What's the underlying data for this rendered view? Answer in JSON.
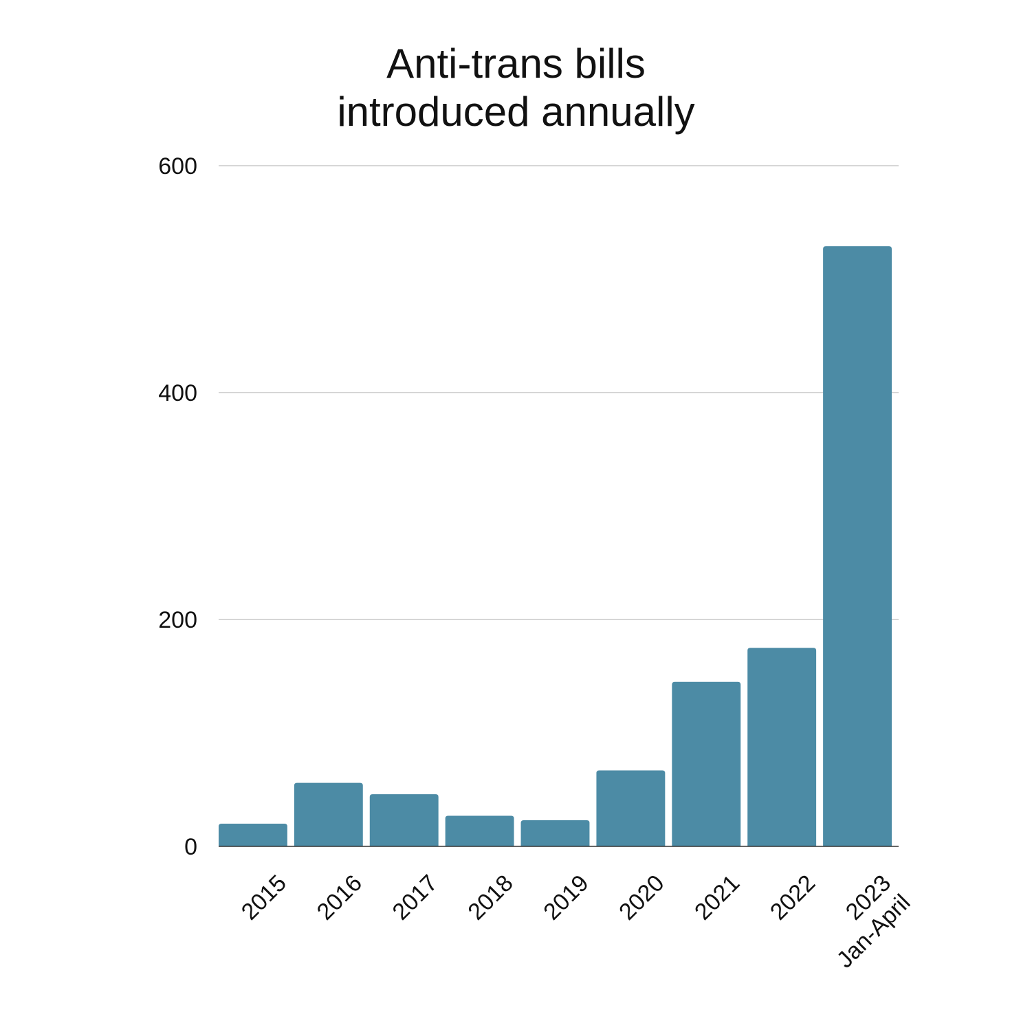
{
  "chart_data": {
    "type": "bar",
    "title": [
      "Anti-trans bills",
      "introduced annually"
    ],
    "categories": [
      [
        "2015"
      ],
      [
        "2016"
      ],
      [
        "2017"
      ],
      [
        "2018"
      ],
      [
        "2019"
      ],
      [
        "2020"
      ],
      [
        "2021"
      ],
      [
        "2022"
      ],
      [
        "2023",
        "Jan-April"
      ]
    ],
    "values": [
      20,
      56,
      46,
      27,
      23,
      67,
      145,
      175,
      529
    ],
    "xlabel": "",
    "ylabel": "",
    "ylim": [
      0,
      600
    ],
    "yticks": [
      0,
      200,
      400,
      600
    ],
    "grid": true,
    "bar_color": "#4c8ba5",
    "label_rotation_deg": -45
  }
}
